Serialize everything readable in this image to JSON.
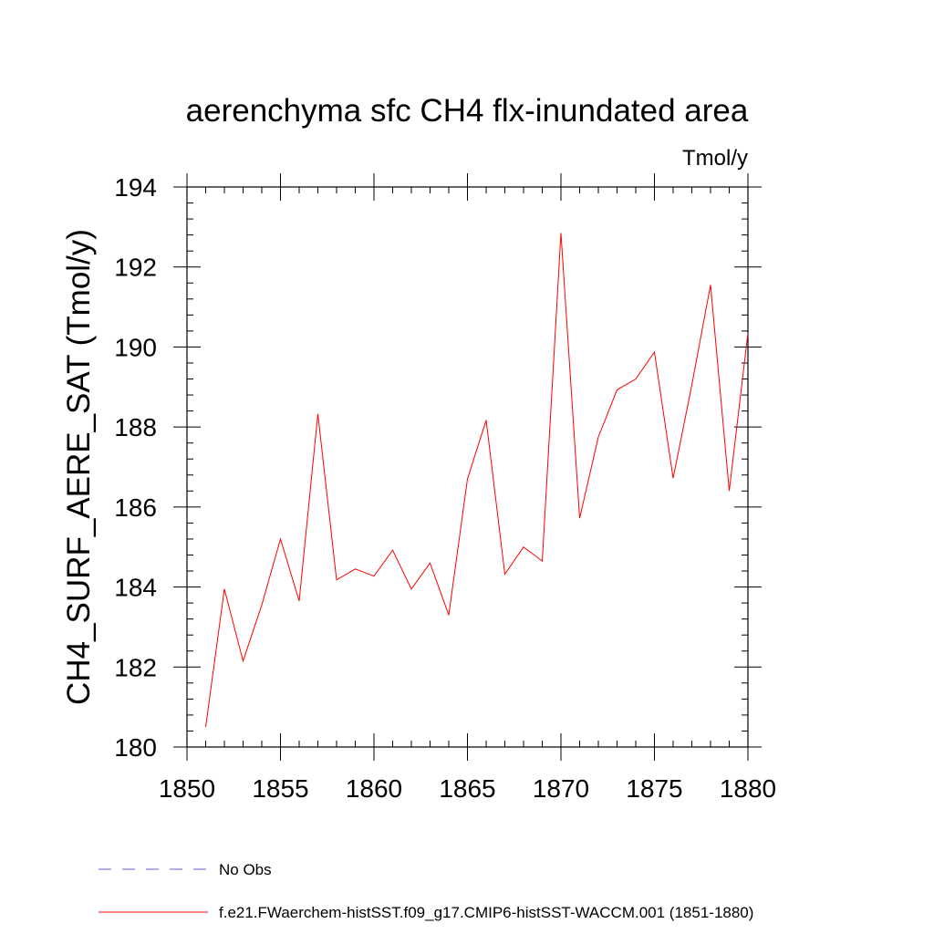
{
  "chart_data": {
    "type": "line",
    "title": "aerenchyma sfc CH4 flx-inundated area",
    "units_label": "Tmol/y",
    "ylabel": "CH4_SURF_AERE_SAT  (Tmol/y)",
    "xlabel": "",
    "xlim": [
      1850,
      1880
    ],
    "ylim": [
      180,
      194
    ],
    "xticks": [
      1850,
      1855,
      1860,
      1865,
      1870,
      1875,
      1880
    ],
    "yticks": [
      180,
      182,
      184,
      186,
      188,
      190,
      192,
      194
    ],
    "grid": false,
    "series": [
      {
        "name": "f.e21.FWaerchem-histSST.f09_g17.CMIP6-histSST-WACCM.001 (1851-1880)",
        "color": "#ff0000",
        "style": "solid",
        "x": [
          1851,
          1852,
          1853,
          1854,
          1855,
          1856,
          1857,
          1858,
          1859,
          1860,
          1861,
          1862,
          1863,
          1864,
          1865,
          1866,
          1867,
          1868,
          1869,
          1870,
          1871,
          1872,
          1873,
          1874,
          1875,
          1876,
          1877,
          1878,
          1879,
          1880
        ],
        "y": [
          180.5,
          183.95,
          182.15,
          183.55,
          185.2,
          183.65,
          188.33,
          184.18,
          184.45,
          184.27,
          184.92,
          183.95,
          184.6,
          183.3,
          186.7,
          188.17,
          184.32,
          185.0,
          184.65,
          192.85,
          185.72,
          187.75,
          188.93,
          189.2,
          189.87,
          186.72,
          189.05,
          191.55,
          186.4,
          190.35
        ]
      }
    ],
    "legend": [
      {
        "label": "No Obs",
        "color": "#6a5acd",
        "style": "dashed"
      },
      {
        "label": "f.e21.FWaerchem-histSST.f09_g17.CMIP6-histSST-WACCM.001 (1851-1880)",
        "color": "#ff0000",
        "style": "solid"
      }
    ],
    "legend_placement": "bottom"
  }
}
